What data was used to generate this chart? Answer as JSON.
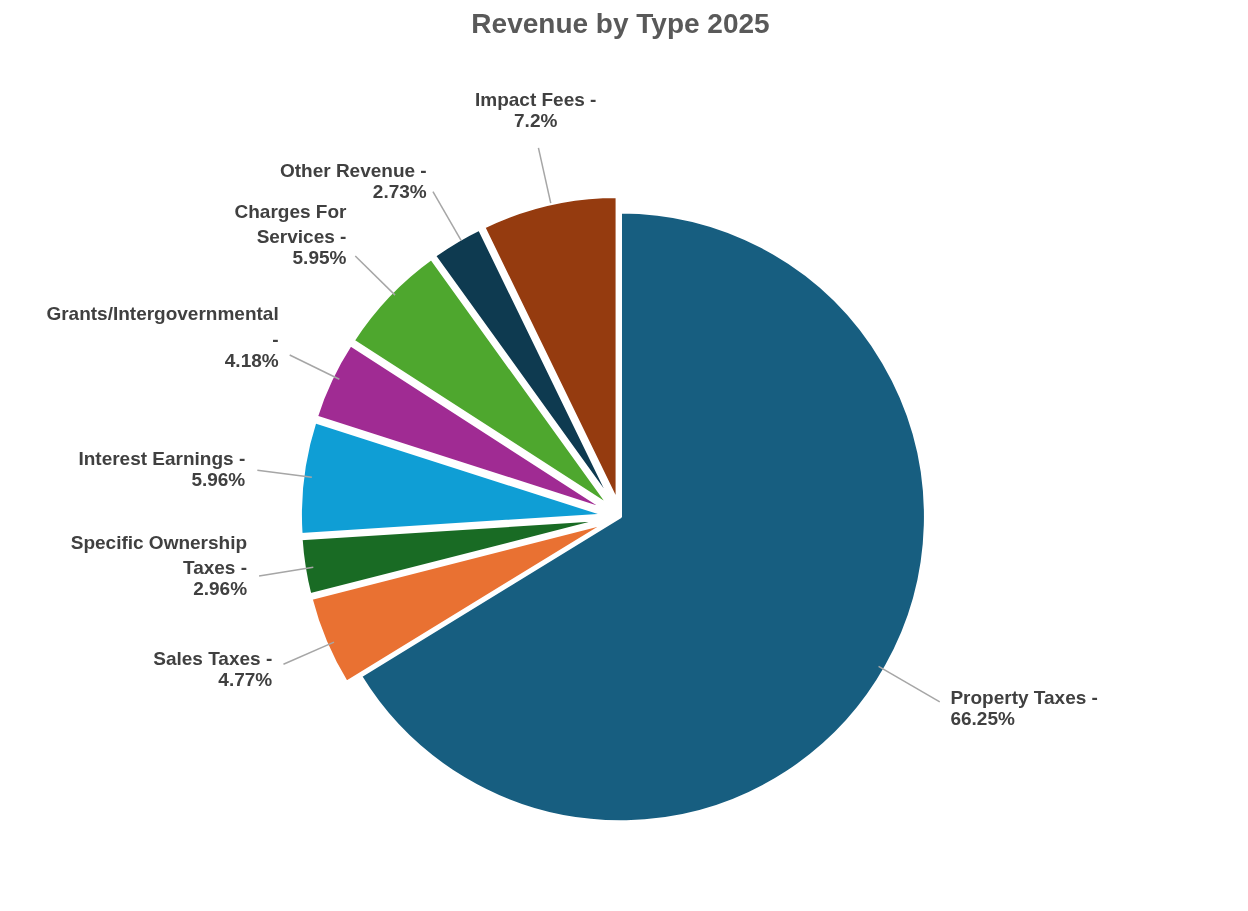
{
  "chart_data": {
    "type": "pie",
    "title": "Revenue by Type 2025",
    "categories": [
      "Property Taxes -",
      "Sales Taxes -",
      "Specific Ownership Taxes -",
      "Interest Earnings -",
      "Grants/Intergovernmental -",
      "Charges For Services -",
      "Other Revenue -",
      "Impact Fees -"
    ],
    "values": [
      66.25,
      4.77,
      2.96,
      5.96,
      4.18,
      5.95,
      2.73,
      7.2
    ],
    "colors": [
      "#175e80",
      "#e97132",
      "#196b24",
      "#0f9ed5",
      "#a02b93",
      "#4ea72e",
      "#0e3a50",
      "#953b0f"
    ],
    "value_labels": [
      "66.25%",
      "4.77%",
      "2.96%",
      "5.96%",
      "4.18%",
      "5.95%",
      "2.73%",
      "7.2%"
    ],
    "legend": false
  }
}
